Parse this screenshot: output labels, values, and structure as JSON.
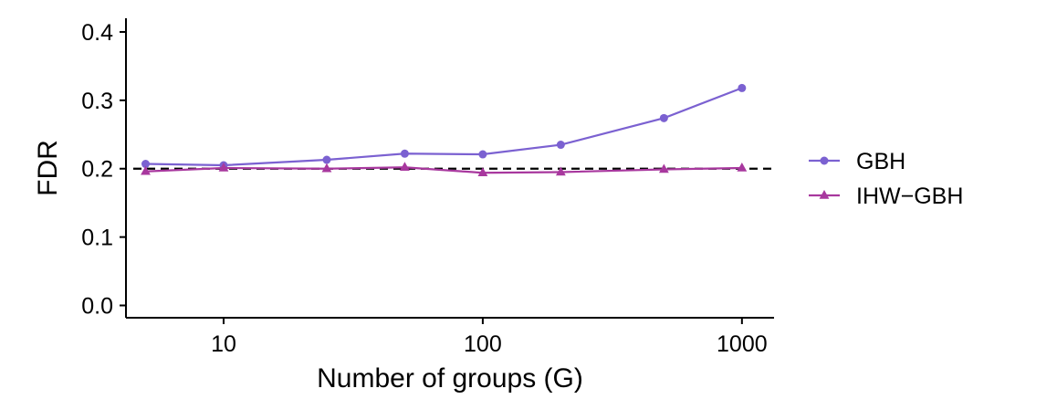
{
  "chart_data": {
    "type": "line",
    "xlabel": "Number of groups (G)",
    "ylabel": "FDR",
    "x_scale": "log10",
    "xlim": [
      4.2,
      1330
    ],
    "ylim": [
      -0.018,
      0.42
    ],
    "x_ticks": [
      10,
      100,
      1000
    ],
    "x_tick_labels": [
      "10",
      "100",
      "1000"
    ],
    "y_ticks": [
      0.0,
      0.1,
      0.2,
      0.3,
      0.4
    ],
    "y_tick_labels": [
      "0.0",
      "0.1",
      "0.2",
      "0.3",
      "0.4"
    ],
    "x": [
      5,
      10,
      25,
      50,
      100,
      200,
      500,
      1000
    ],
    "series": [
      {
        "name": "GBH",
        "marker": "circle",
        "color": "#7b61d1",
        "values": [
          0.207,
          0.205,
          0.213,
          0.222,
          0.221,
          0.235,
          0.274,
          0.318
        ]
      },
      {
        "name": "IHW−GBH",
        "marker": "triangle",
        "color": "#a8389e",
        "values": [
          0.196,
          0.201,
          0.2,
          0.202,
          0.194,
          0.195,
          0.199,
          0.201
        ]
      }
    ],
    "reference_line": {
      "y": 0.2,
      "style": "dashed",
      "color": "#000000"
    },
    "legend_position": "right",
    "grid": false
  }
}
